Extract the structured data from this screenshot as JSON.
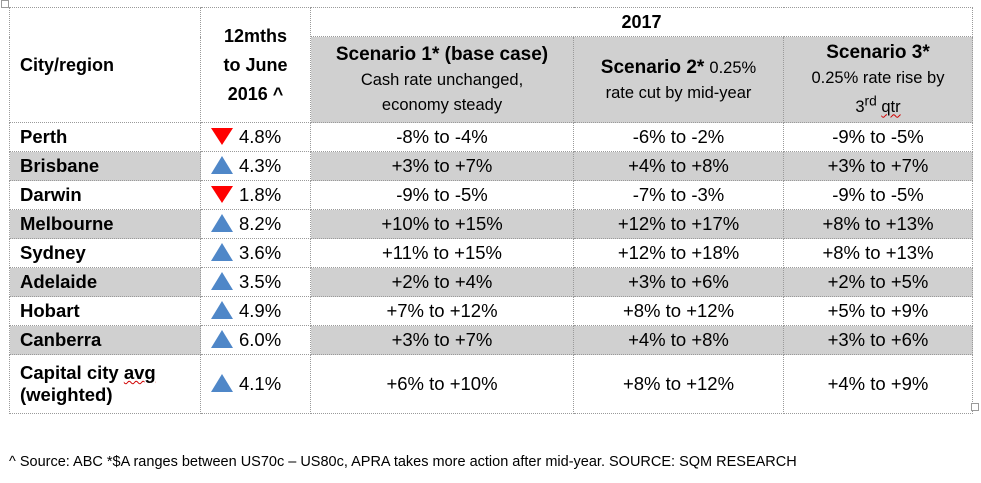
{
  "table": {
    "header": {
      "city_label": "City/region",
      "period_lines": [
        "12mths",
        "to June",
        "2016 ^"
      ],
      "year": "2017",
      "scenarios": [
        {
          "title": "Scenario 1* (base case)",
          "desc_lines": [
            "Cash rate unchanged,",
            "economy steady"
          ]
        },
        {
          "title": "Scenario 2*",
          "desc_inline": "0.25%",
          "desc_lines": [
            "rate cut by mid-year"
          ]
        },
        {
          "title": "Scenario 3*",
          "desc_lines": [
            "0.25% rate rise by"
          ],
          "desc_sup_prefix": "3",
          "desc_sup": "rd",
          "desc_suffix": "qtr"
        }
      ]
    },
    "rows": [
      {
        "city": "Perth",
        "direction": "down",
        "change": "4.8%",
        "s1": "-8% to -4%",
        "s2": "-6% to -2%",
        "s3": "-9% to -5%"
      },
      {
        "city": "Brisbane",
        "direction": "up",
        "change": "4.3%",
        "s1": "+3% to +7%",
        "s2": "+4% to +8%",
        "s3": "+3% to +7%"
      },
      {
        "city": "Darwin",
        "direction": "down",
        "change": "1.8%",
        "s1": "-9% to -5%",
        "s2": "-7% to -3%",
        "s3": "-9% to -5%"
      },
      {
        "city": "Melbourne",
        "direction": "up",
        "change": "8.2%",
        "s1": "+10% to +15%",
        "s2": "+12% to +17%",
        "s3": "+8% to +13%"
      },
      {
        "city": "Sydney",
        "direction": "up",
        "change": "3.6%",
        "s1": "+11% to +15%",
        "s2": "+12% to +18%",
        "s3": "+8% to +13%"
      },
      {
        "city": "Adelaide",
        "direction": "up",
        "change": "3.5%",
        "s1": "+2% to +4%",
        "s2": "+3% to +6%",
        "s3": "+2% to +5%"
      },
      {
        "city": "Hobart",
        "direction": "up",
        "change": "4.9%",
        "s1": "+7% to +12%",
        "s2": "+8% to +12%",
        "s3": "+5% to +9%"
      },
      {
        "city": "Canberra",
        "direction": "up",
        "change": "6.0%",
        "s1": "+3% to +7%",
        "s2": "+4% to +8%",
        "s3": "+3% to +6%"
      }
    ],
    "avg_row": {
      "city_line1": "Capital city",
      "city_line1_word": "avg",
      "city_line2": "(weighted)",
      "direction": "up",
      "change": "4.1%",
      "s1": "+6% to +10%",
      "s2": "+8% to +12%",
      "s3": "+4% to +9%"
    }
  },
  "footnote": "^ Source: ABC *$A ranges between US70c – US80c, APRA takes more action after mid-year. SOURCE: SQM RESEARCH",
  "colors": {
    "down_arrow": "#ff0000",
    "up_arrow": "#4f87c8",
    "shade": "#d0d0d0"
  }
}
